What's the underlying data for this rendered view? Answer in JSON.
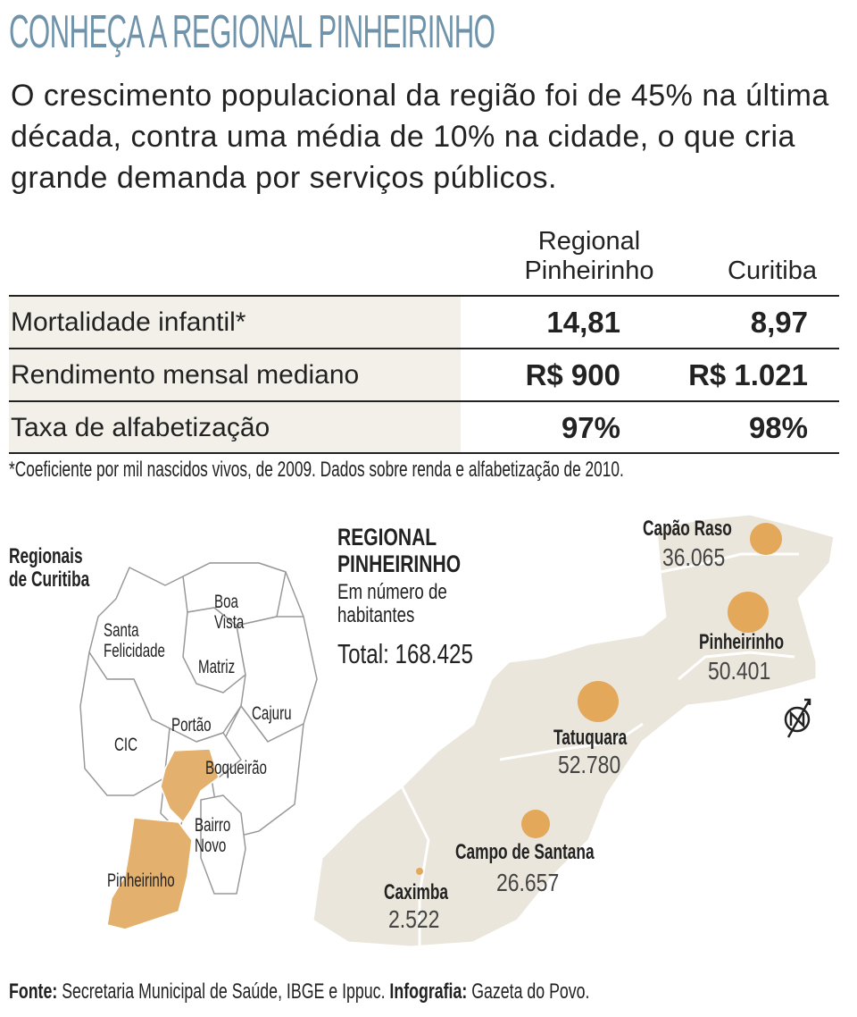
{
  "header": {
    "title": "CONHEÇA A REGIONAL PINHEIRINHO",
    "subtitle": "O crescimento populacional da região foi de 45% na última década, contra uma média de 10% na cidade, o que cria grande demanda por serviços públicos."
  },
  "table": {
    "columns": [
      "Regional Pinheirinho",
      "Curitiba"
    ],
    "rows": [
      [
        "Mortalidade infantil*",
        "14,81",
        "8,97"
      ],
      [
        "Rendimento mensal mediano",
        "R$ 900",
        "R$ 1.021"
      ],
      [
        "Taxa de alfabetização",
        "97%",
        "98%"
      ]
    ],
    "footnote": "*Coeficiente por mil nascidos vivos, de 2009. Dados sobre renda e alfabetização de 2010."
  },
  "locator_map": {
    "title": "Regionais de Curitiba",
    "labels": [
      "Boa Vista",
      "Santa Felicidade",
      "Matriz",
      "Cajuru",
      "Portão",
      "CIC",
      "Boqueirão",
      "Bairro Novo",
      "Pinheirinho"
    ]
  },
  "regional_map": {
    "title": "REGIONAL PINHEIRINHO",
    "subtitle": "Em número de habitantes",
    "total": "Total: 168.425",
    "districts": [
      {
        "name": "Capão Raso",
        "population": "36.065"
      },
      {
        "name": "Pinheirinho",
        "population": "50.401"
      },
      {
        "name": "Tatuquara",
        "population": "52.780"
      },
      {
        "name": "Campo de Santana",
        "population": "26.657"
      },
      {
        "name": "Caximba",
        "population": "2.522"
      }
    ]
  },
  "source": {
    "label": "Fonte:",
    "text": "Secretaria Municipal de Saúde, IBGE e Ippuc.",
    "credit_label": "Infografia:",
    "credit": "Gazeta do Povo."
  }
}
